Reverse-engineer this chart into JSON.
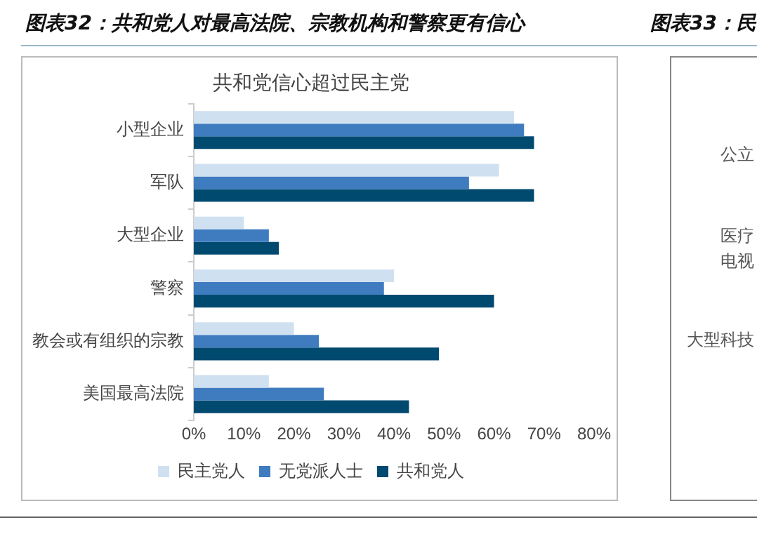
{
  "chart_data": {
    "type": "bar",
    "orientation": "horizontal",
    "title": "图表32：共和党人对最高法院、宗教机构和警察更有信心",
    "subtitle": "共和党信心超过民主党",
    "categories": [
      "小型企业",
      "军队",
      "大型企业",
      "警察",
      "教会或有组织的宗教",
      "美国最高法院"
    ],
    "series": [
      {
        "name": "民主党人",
        "color": "#cfe0f1",
        "values": [
          64,
          61,
          10,
          40,
          20,
          15
        ]
      },
      {
        "name": "无党派人士",
        "color": "#3f7bbf",
        "values": [
          66,
          55,
          15,
          38,
          25,
          26
        ]
      },
      {
        "name": "共和党人",
        "color": "#004a70",
        "values": [
          68,
          68,
          17,
          60,
          49,
          43
        ]
      }
    ],
    "xlim": [
      0,
      80
    ],
    "xticks": [
      {
        "value": 0,
        "label": "0%"
      },
      {
        "value": 10,
        "label": "10%"
      },
      {
        "value": 20,
        "label": "20%"
      },
      {
        "value": 30,
        "label": "30%"
      },
      {
        "value": 40,
        "label": "40%"
      },
      {
        "value": 50,
        "label": "50%"
      },
      {
        "value": 60,
        "label": "60%"
      },
      {
        "value": 70,
        "label": "70%"
      },
      {
        "value": 80,
        "label": "80%"
      }
    ],
    "grid": false,
    "legend": "bottom",
    "annotations": [
      "图表33：民",
      "公立",
      "医疗",
      "电视",
      "大型科技"
    ]
  }
}
